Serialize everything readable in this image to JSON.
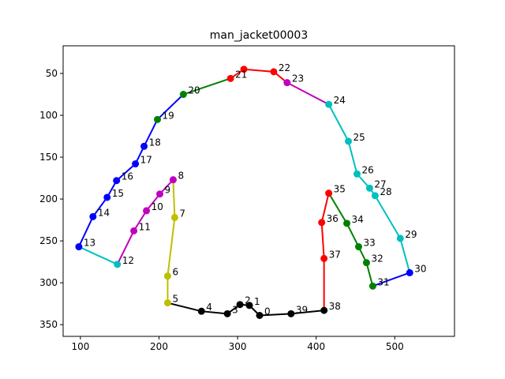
{
  "chart_data": {
    "type": "line",
    "title": "man_jacket00003",
    "xlabel": "",
    "ylabel": "",
    "xlim": [
      78,
      576
    ],
    "ylim": [
      364,
      17
    ],
    "y_inverted": true,
    "grid": false,
    "xticks": [
      100,
      200,
      300,
      400,
      500
    ],
    "yticks": [
      50,
      100,
      150,
      200,
      250,
      300,
      350
    ],
    "points": [
      {
        "id": "1",
        "x": 315,
        "y": 327
      },
      {
        "id": "2",
        "x": 303,
        "y": 326
      },
      {
        "id": "3",
        "x": 287,
        "y": 337
      },
      {
        "id": "4",
        "x": 254,
        "y": 334
      },
      {
        "id": "5",
        "x": 211,
        "y": 324
      },
      {
        "id": "6",
        "x": 211,
        "y": 292
      },
      {
        "id": "7",
        "x": 220,
        "y": 222
      },
      {
        "id": "8",
        "x": 218,
        "y": 177
      },
      {
        "id": "9",
        "x": 201,
        "y": 194
      },
      {
        "id": "10",
        "x": 184,
        "y": 214
      },
      {
        "id": "11",
        "x": 168,
        "y": 238
      },
      {
        "id": "12",
        "x": 147,
        "y": 278
      },
      {
        "id": "13",
        "x": 98,
        "y": 257
      },
      {
        "id": "14",
        "x": 116,
        "y": 221
      },
      {
        "id": "15",
        "x": 134,
        "y": 198
      },
      {
        "id": "16",
        "x": 146,
        "y": 178
      },
      {
        "id": "17",
        "x": 170,
        "y": 158
      },
      {
        "id": "18",
        "x": 181,
        "y": 137
      },
      {
        "id": "19",
        "x": 198,
        "y": 105
      },
      {
        "id": "20",
        "x": 231,
        "y": 75
      },
      {
        "id": "21",
        "x": 291,
        "y": 56
      },
      {
        "id": "",
        "x": 308,
        "y": 45
      },
      {
        "id": "22",
        "x": 346,
        "y": 48
      },
      {
        "id": "23",
        "x": 363,
        "y": 61
      },
      {
        "id": "24",
        "x": 416,
        "y": 87
      },
      {
        "id": "25",
        "x": 441,
        "y": 131
      },
      {
        "id": "26",
        "x": 452,
        "y": 170
      },
      {
        "id": "27",
        "x": 468,
        "y": 187
      },
      {
        "id": "28",
        "x": 475,
        "y": 196
      },
      {
        "id": "29",
        "x": 507,
        "y": 247
      },
      {
        "id": "30",
        "x": 519,
        "y": 288
      },
      {
        "id": "31",
        "x": 472,
        "y": 304
      },
      {
        "id": "32",
        "x": 464,
        "y": 276
      },
      {
        "id": "33",
        "x": 454,
        "y": 257
      },
      {
        "id": "34",
        "x": 439,
        "y": 229
      },
      {
        "id": "35",
        "x": 416,
        "y": 193
      },
      {
        "id": "36",
        "x": 407,
        "y": 228
      },
      {
        "id": "37",
        "x": 410,
        "y": 271
      },
      {
        "id": "38",
        "x": 410,
        "y": 333
      },
      {
        "id": "39",
        "x": 368,
        "y": 337
      },
      {
        "id": "0",
        "x": 328,
        "y": 339
      }
    ],
    "segments": [
      {
        "from": "0",
        "to": "1",
        "color": "#000000"
      },
      {
        "from": "1",
        "to": "2",
        "color": "#000000"
      },
      {
        "from": "2",
        "to": "3",
        "color": "#000000"
      },
      {
        "from": "3",
        "to": "4",
        "color": "#000000"
      },
      {
        "from": "4",
        "to": "5",
        "color": "#000000"
      },
      {
        "from": "5",
        "to": "6",
        "color": "#bfbf00"
      },
      {
        "from": "6",
        "to": "7",
        "color": "#bfbf00"
      },
      {
        "from": "7",
        "to": "8",
        "color": "#bfbf00"
      },
      {
        "from": "8",
        "to": "9",
        "color": "#bf00bf"
      },
      {
        "from": "9",
        "to": "10",
        "color": "#bf00bf"
      },
      {
        "from": "10",
        "to": "11",
        "color": "#bf00bf"
      },
      {
        "from": "11",
        "to": "12",
        "color": "#bf00bf"
      },
      {
        "from": "12",
        "to": "13",
        "color": "#00bfbf"
      },
      {
        "from": "13",
        "to": "14",
        "color": "#0000ff"
      },
      {
        "from": "14",
        "to": "15",
        "color": "#0000ff"
      },
      {
        "from": "15",
        "to": "16",
        "color": "#0000ff"
      },
      {
        "from": "16",
        "to": "17",
        "color": "#0000ff"
      },
      {
        "from": "17",
        "to": "18",
        "color": "#0000ff"
      },
      {
        "from": "18",
        "to": "19",
        "color": "#0000ff"
      },
      {
        "from": "19",
        "to": "20",
        "color": "#0000ff"
      },
      {
        "from": "20",
        "to": "21",
        "color": "#008000"
      },
      {
        "from": "21",
        "to": "",
        "color": "#ff0000"
      },
      {
        "from": "",
        "to": "22",
        "color": "#ff0000"
      },
      {
        "from": "22",
        "to": "23",
        "color": "#ff0000"
      },
      {
        "from": "23",
        "to": "24",
        "color": "#bf00bf"
      },
      {
        "from": "24",
        "to": "25",
        "color": "#00bfbf"
      },
      {
        "from": "25",
        "to": "26",
        "color": "#00bfbf"
      },
      {
        "from": "26",
        "to": "27",
        "color": "#00bfbf"
      },
      {
        "from": "27",
        "to": "28",
        "color": "#00bfbf"
      },
      {
        "from": "28",
        "to": "29",
        "color": "#00bfbf"
      },
      {
        "from": "29",
        "to": "30",
        "color": "#00bfbf"
      },
      {
        "from": "30",
        "to": "31",
        "color": "#0000ff"
      },
      {
        "from": "31",
        "to": "32",
        "color": "#008000"
      },
      {
        "from": "32",
        "to": "33",
        "color": "#008000"
      },
      {
        "from": "33",
        "to": "34",
        "color": "#008000"
      },
      {
        "from": "34",
        "to": "35",
        "color": "#008000"
      },
      {
        "from": "35",
        "to": "36",
        "color": "#ff0000"
      },
      {
        "from": "36",
        "to": "37",
        "color": "#ff0000"
      },
      {
        "from": "37",
        "to": "38",
        "color": "#ff0000"
      },
      {
        "from": "38",
        "to": "39",
        "color": "#000000"
      },
      {
        "from": "39",
        "to": "0",
        "color": "#000000"
      }
    ],
    "point_colors": {
      "0": "#000000",
      "1": "#000000",
      "2": "#000000",
      "3": "#000000",
      "4": "#000000",
      "5": "#bfbf00",
      "6": "#bfbf00",
      "7": "#bfbf00",
      "8": "#bf00bf",
      "9": "#bf00bf",
      "10": "#bf00bf",
      "11": "#bf00bf",
      "12": "#00bfbf",
      "13": "#0000ff",
      "14": "#0000ff",
      "15": "#0000ff",
      "16": "#0000ff",
      "17": "#0000ff",
      "18": "#0000ff",
      "19": "#008000",
      "20": "#008000",
      "21": "#ff0000",
      "": "#ff0000",
      "22": "#ff0000",
      "23": "#bf00bf",
      "24": "#00bfbf",
      "25": "#00bfbf",
      "26": "#00bfbf",
      "27": "#00bfbf",
      "28": "#00bfbf",
      "29": "#00bfbf",
      "30": "#0000ff",
      "31": "#008000",
      "32": "#008000",
      "33": "#008000",
      "34": "#008000",
      "35": "#ff0000",
      "36": "#ff0000",
      "37": "#ff0000",
      "38": "#000000",
      "39": "#000000"
    }
  }
}
